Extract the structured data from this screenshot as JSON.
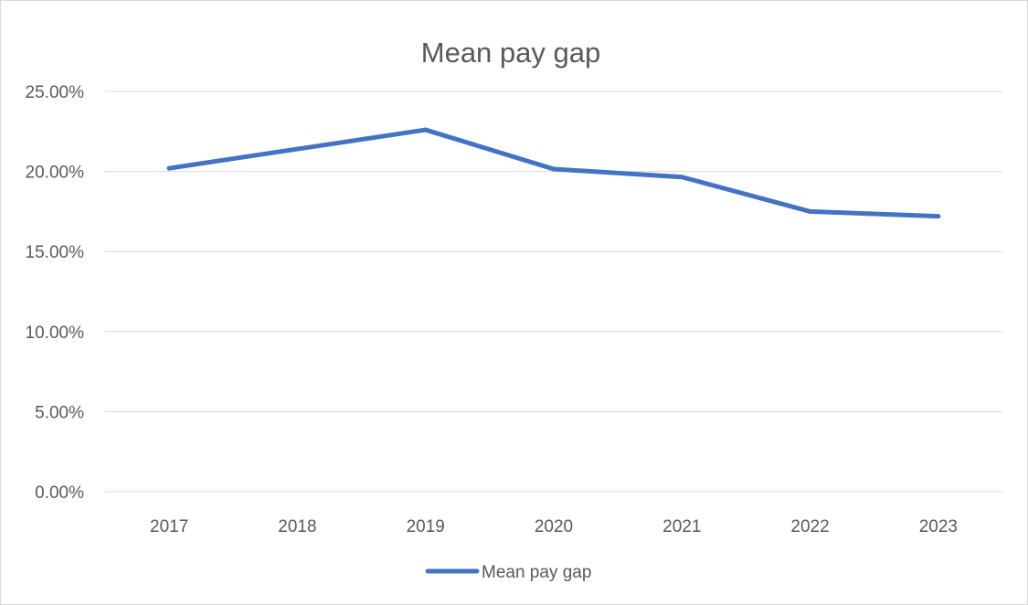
{
  "chart_data": {
    "type": "line",
    "title": "Mean pay gap",
    "categories": [
      "2017",
      "2018",
      "2019",
      "2020",
      "2021",
      "2022",
      "2023"
    ],
    "series": [
      {
        "name": "Mean pay gap",
        "values": [
          20.2,
          21.4,
          22.6,
          20.15,
          19.65,
          17.5,
          17.2
        ]
      }
    ],
    "y_ticks": [
      "0.00%",
      "5.00%",
      "10.00%",
      "15.00%",
      "20.00%",
      "25.00%"
    ],
    "ylim": [
      0,
      25
    ],
    "grid": true,
    "legend_position": "bottom",
    "colors": {
      "series": "#4472c4",
      "grid": "#d9d9d9",
      "text": "#595959"
    }
  }
}
